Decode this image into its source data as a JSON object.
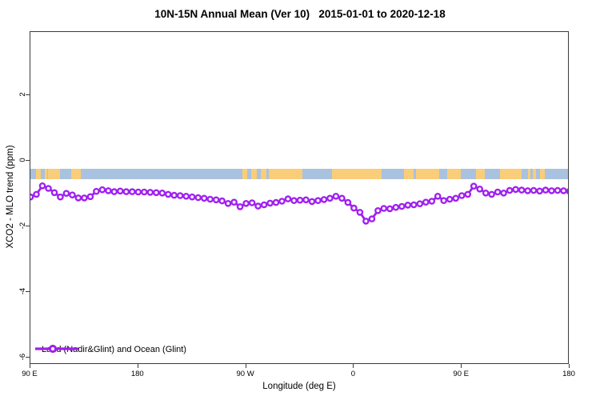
{
  "title": "10N-15N Annual Mean (Ver 10)   2015-01-01 to 2020-12-18",
  "chart_data": {
    "type": "line",
    "title": "10N-15N Annual Mean (Ver 10)   2015-01-01 to 2020-12-18",
    "xlabel": "Longitude (deg E)",
    "ylabel": "XCO2 - MLO trend (ppm)",
    "x_axis": {
      "description": "Longitude wrapping from 90E eastward through 180, 90W, 0, 90E to 180 (450 degrees total)",
      "span_deg": 450,
      "ticks": [
        {
          "deg": 0,
          "label": "90 E"
        },
        {
          "deg": 90,
          "label": "180"
        },
        {
          "deg": 180,
          "label": "90 W"
        },
        {
          "deg": 270,
          "label": "0"
        },
        {
          "deg": 360,
          "label": "90 E"
        },
        {
          "deg": 450,
          "label": "180"
        }
      ]
    },
    "ylim": [
      -6.23,
      3.94
    ],
    "yticks": [
      2,
      0,
      -2,
      -4,
      -6
    ],
    "grid": "off",
    "legend_position": "bottom-left-inside",
    "series": [
      {
        "name": "Land (Nadir&Glint) and Ocean (Glint)",
        "color": "#A020F0",
        "marker": "open-circle",
        "x_step_deg": 5,
        "values": [
          -1.1,
          -1.02,
          -0.76,
          -0.84,
          -0.97,
          -1.1,
          -0.99,
          -1.04,
          -1.13,
          -1.13,
          -1.09,
          -0.93,
          -0.88,
          -0.91,
          -0.94,
          -0.92,
          -0.94,
          -0.94,
          -0.95,
          -0.95,
          -0.96,
          -0.97,
          -0.98,
          -1.02,
          -1.05,
          -1.06,
          -1.08,
          -1.1,
          -1.12,
          -1.14,
          -1.17,
          -1.19,
          -1.22,
          -1.3,
          -1.26,
          -1.4,
          -1.3,
          -1.28,
          -1.38,
          -1.34,
          -1.29,
          -1.27,
          -1.23,
          -1.16,
          -1.21,
          -1.2,
          -1.19,
          -1.24,
          -1.21,
          -1.18,
          -1.14,
          -1.08,
          -1.14,
          -1.27,
          -1.44,
          -1.57,
          -1.84,
          -1.77,
          -1.52,
          -1.45,
          -1.46,
          -1.42,
          -1.39,
          -1.35,
          -1.34,
          -1.31,
          -1.26,
          -1.23,
          -1.08,
          -1.21,
          -1.17,
          -1.14,
          -1.06,
          -1.02,
          -0.77,
          -0.86,
          -0.98,
          -1.02,
          -0.95,
          -0.98,
          -0.9,
          -0.87,
          -0.89,
          -0.91,
          -0.9,
          -0.92,
          -0.89,
          -0.91,
          -0.9,
          -0.91,
          -0.93
        ]
      }
    ],
    "map_band": {
      "description": "Horizontal strip showing ocean (blue) and land (orange) along longitude",
      "y_top": -0.25,
      "y_bottom": -0.55,
      "ocean_color": "#A9C2DF",
      "land_color": "#FACD7A",
      "land_patches_deg": [
        [
          5,
          9
        ],
        [
          12,
          14
        ],
        [
          15,
          25
        ],
        [
          34,
          42
        ],
        [
          177,
          181
        ],
        [
          184,
          189
        ],
        [
          192,
          197
        ],
        [
          199,
          227
        ],
        [
          252,
          293
        ],
        [
          312,
          320
        ],
        [
          322,
          341
        ],
        [
          348,
          359
        ],
        [
          372,
          379
        ],
        [
          392,
          410
        ],
        [
          415,
          417
        ],
        [
          419,
          422
        ],
        [
          425,
          429
        ]
      ]
    }
  },
  "legend": {
    "label": "Land (Nadir&Glint) and Ocean (Glint)"
  }
}
